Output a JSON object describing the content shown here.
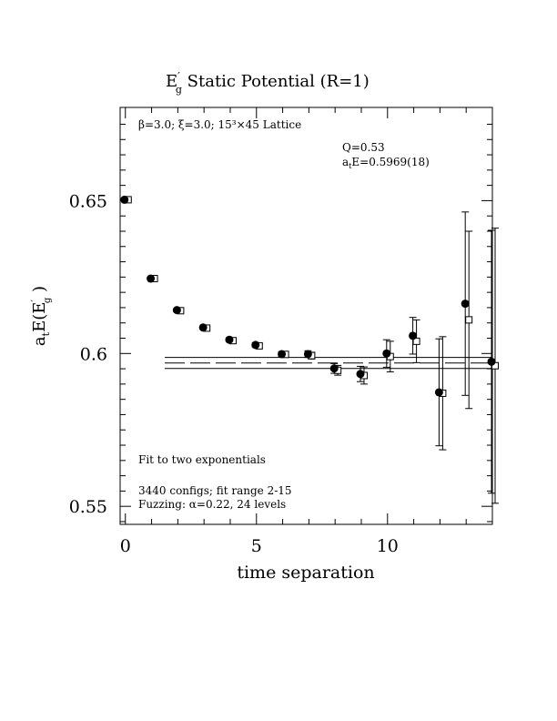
{
  "chart_data": {
    "type": "scatter",
    "title": {
      "main": "E",
      "prime": "′",
      "sub": "g",
      "rest": "  Static Potential (R=1)"
    },
    "ylabel": {
      "a": "a",
      "t": "t",
      "E": "E(E",
      "prime": "′",
      "g": "g",
      "close": " )"
    },
    "xlabel": "time separation",
    "xlim": [
      -0.2,
      14
    ],
    "ylim": [
      0.5441,
      0.6805
    ],
    "x_ticks": [
      {
        "v": 0,
        "label": "0"
      },
      {
        "v": 5,
        "label": "5"
      },
      {
        "v": 10,
        "label": "10"
      }
    ],
    "y_ticks": [
      {
        "v": 0.55,
        "label": "0.55"
      },
      {
        "v": 0.6,
        "label": "0.6"
      },
      {
        "v": 0.65,
        "label": "0.65"
      }
    ],
    "annotations": {
      "lattice": "β=3.0; ξ=3.0; 15³×45 Lattice",
      "q": "Q=0.53",
      "ate_a": "a",
      "ate_t": "t",
      "ate_rest": "E=0.5969(18)",
      "fit": "Fit to two exponentials",
      "configs": "3440 configs; fit range 2-15",
      "fuzz": "Fuzzing: α=0.22, 24 levels"
    },
    "series": [
      {
        "marker": "filled-circle",
        "points": [
          {
            "x": 0,
            "y": 0.6503,
            "err": 0.0002
          },
          {
            "x": 1,
            "y": 0.6245,
            "err": 0.0003
          },
          {
            "x": 2,
            "y": 0.6142,
            "err": 0.0004
          },
          {
            "x": 3,
            "y": 0.6085,
            "err": 0.0005
          },
          {
            "x": 4,
            "y": 0.6045,
            "err": 0.0006
          },
          {
            "x": 5,
            "y": 0.6028,
            "err": 0.0007
          },
          {
            "x": 6,
            "y": 0.5998,
            "err": 0.0008
          },
          {
            "x": 7,
            "y": 0.5998,
            "err": 0.0011
          },
          {
            "x": 8,
            "y": 0.5951,
            "err": 0.0016
          },
          {
            "x": 9,
            "y": 0.5933,
            "err": 0.0025
          },
          {
            "x": 10,
            "y": 0.6,
            "err": 0.0045
          },
          {
            "x": 11,
            "y": 0.6058,
            "err": 0.006
          },
          {
            "x": 12,
            "y": 0.5873,
            "err": 0.0175
          },
          {
            "x": 13,
            "y": 0.6163,
            "err": 0.03
          },
          {
            "x": 14,
            "y": 0.5973,
            "err": 0.043
          }
        ]
      },
      {
        "marker": "open-square",
        "points": [
          {
            "x": 0,
            "y": 0.6503,
            "err": 0.0002
          },
          {
            "x": 1,
            "y": 0.6245,
            "err": 0.0003
          },
          {
            "x": 2,
            "y": 0.614,
            "err": 0.0004
          },
          {
            "x": 3,
            "y": 0.6083,
            "err": 0.0005
          },
          {
            "x": 4,
            "y": 0.6042,
            "err": 0.0006
          },
          {
            "x": 5,
            "y": 0.6025,
            "err": 0.0007
          },
          {
            "x": 6,
            "y": 0.5997,
            "err": 0.0008
          },
          {
            "x": 7,
            "y": 0.5993,
            "err": 0.0011
          },
          {
            "x": 8,
            "y": 0.5945,
            "err": 0.0016
          },
          {
            "x": 9,
            "y": 0.5928,
            "err": 0.0028
          },
          {
            "x": 10,
            "y": 0.599,
            "err": 0.005
          },
          {
            "x": 11,
            "y": 0.604,
            "err": 0.007
          },
          {
            "x": 12,
            "y": 0.587,
            "err": 0.0185
          },
          {
            "x": 13,
            "y": 0.611,
            "err": 0.029
          },
          {
            "x": 14,
            "y": 0.596,
            "err": 0.045
          }
        ]
      }
    ],
    "fit": {
      "x_start": 1.5,
      "x_end": 14,
      "center": 0.5969,
      "err": 0.0018
    }
  }
}
